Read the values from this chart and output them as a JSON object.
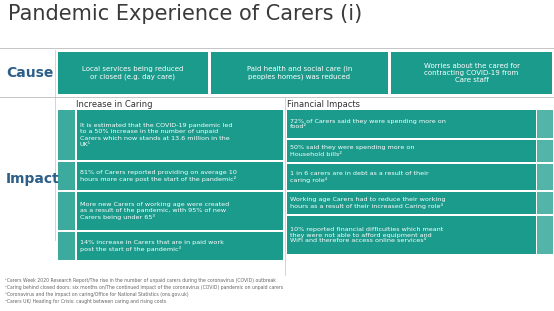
{
  "title": "Pandemic Experience of Carers (i)",
  "bg_color": "#ffffff",
  "teal": "#1a9b8c",
  "cause_label": "Cause",
  "impact_label": "Impact",
  "label_color": "#2c5f8a",
  "cause_boxes": [
    "Local services being reduced\nor closed (e.g. day care)",
    "Paid health and social care (in\npeoples homes) was reduced",
    "Worries about the cared for\ncontracting COVID-19 from\nCare staff"
  ],
  "increase_title": "Increase in Caring",
  "financial_title": "Financial Impacts",
  "increase_items": [
    "It is estimated that the COVID-19 pandemic led\nto a 50% increase in the number of unpaid\nCarers which now stands at 13.6 million in the\nUK¹",
    "81% of Carers reported providing on average 10\nhours more care post the start of the pandemic²",
    "More new Carers of working age were created\nas a result of the pandemic, with 95% of new\nCarers being under 65³",
    "14% increase in Carers that are in paid work\npost the start of the pandemic³"
  ],
  "financial_items": [
    "72% of Carers said they were spending more on\nfood²",
    "50% said they were spending more on\nHousehold bills²",
    "1 in 6 carers are in debt as a result of their\ncaring role⁴",
    "Working age Carers had to reduce their working\nhours as a result of their increased Caring role⁴",
    "10% reported financial difficulties which meant\nthey were not able to afford equipment and\nWiFi and therefore access online services⁴"
  ],
  "footnotes": [
    "¹Carers Week 2020 Research Report/The rise in the number of unpaid carers during the coronavirus (COVID) outbreak",
    "²Caring behind closed doors: six months on/The continued impact of the coronavirus (COVID) pandemic on unpaid carers",
    "³Coronavirus and the impact on caring/Office for National Statistics (ons.gov.uk)",
    "⁴Carers UK/ Heading for Crisis: caught between caring and rising costs"
  ]
}
